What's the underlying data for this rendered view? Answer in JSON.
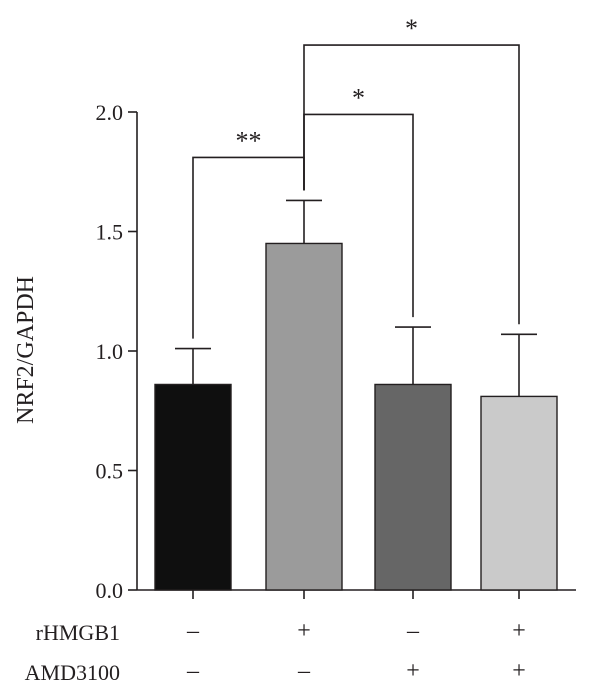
{
  "chart_data": {
    "type": "bar",
    "ylabel": "NRF2/GAPDH",
    "ylim": [
      0,
      2.0
    ],
    "yticks": [
      "0.0",
      "0.5",
      "1.0",
      "1.5",
      "2.0"
    ],
    "grid": false,
    "legend": "none",
    "groups": [
      {
        "value": 0.86,
        "error": 0.15,
        "color": "#0f0f0f"
      },
      {
        "value": 1.45,
        "error": 0.18,
        "color": "#9b9b9b"
      },
      {
        "value": 0.86,
        "error": 0.24,
        "color": "#666666"
      },
      {
        "value": 0.81,
        "error": 0.26,
        "color": "#cacaca"
      }
    ],
    "conditions": [
      {
        "name": "rHMGB1",
        "marks": [
          "–",
          "+",
          "–",
          "+"
        ]
      },
      {
        "name": "AMD3100",
        "marks": [
          "–",
          "–",
          "+",
          "+"
        ]
      }
    ],
    "significance": [
      {
        "from": 0,
        "to": 1,
        "y": 1.81,
        "label": "**"
      },
      {
        "from": 1,
        "to": 2,
        "y": 1.99,
        "label": "*"
      },
      {
        "from": 1,
        "to": 3,
        "y": 2.28,
        "label": "*"
      }
    ]
  }
}
